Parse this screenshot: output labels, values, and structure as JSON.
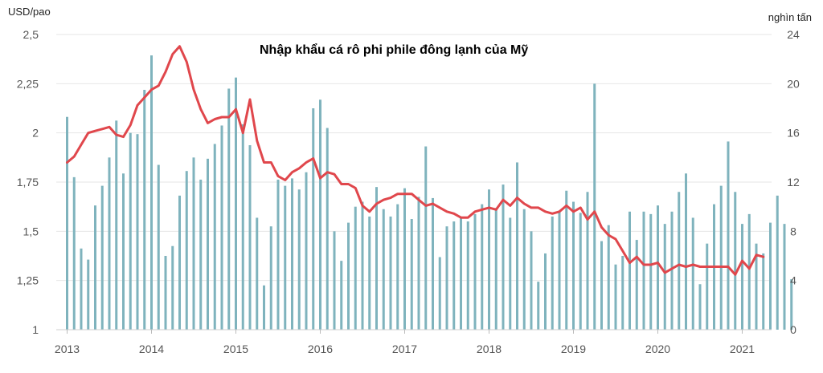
{
  "chart_data": {
    "type": "bar+line",
    "title": "Nhập khẩu cá rô phi phile đông lạnh của Mỹ",
    "y_left_label": "USD/pao",
    "y_right_label": "nghìn tấn",
    "y_left_ticks": [
      "1",
      "1,25",
      "1,5",
      "1,75",
      "2",
      "2,25",
      "2,5"
    ],
    "y_left_range": [
      1,
      2.5
    ],
    "y_right_ticks": [
      "0",
      "4",
      "8",
      "12",
      "16",
      "20",
      "24"
    ],
    "y_right_range": [
      0,
      24
    ],
    "x_tick_labels": [
      "2013",
      "2014",
      "2015",
      "2016",
      "2017",
      "2018",
      "2019",
      "2020",
      "2021"
    ],
    "x_start": "2013-01",
    "grid": true,
    "colors": {
      "bars": "#7fb3bd",
      "line": "#e0474c",
      "grid": "#e6e6e6"
    },
    "series": [
      {
        "type": "bar",
        "axis": "right",
        "values": [
          17.3,
          12.4,
          6.6,
          5.7,
          10.1,
          11.7,
          14.0,
          17.0,
          12.7,
          16.0,
          15.9,
          19.5,
          22.3,
          13.4,
          6.0,
          6.8,
          10.9,
          12.9,
          14.0,
          12.2,
          13.9,
          15.1,
          16.6,
          19.6,
          20.5,
          16.7,
          15.0,
          9.1,
          3.6,
          8.4,
          12.2,
          11.7,
          12.3,
          11.4,
          12.8,
          18.0,
          18.7,
          16.4,
          8.0,
          5.6,
          8.7,
          10.0,
          10.4,
          9.2,
          11.6,
          9.8,
          9.2,
          10.2,
          11.5,
          9.0,
          10.8,
          14.9,
          10.7,
          5.9,
          8.4,
          8.8,
          9.1,
          8.8,
          9.4,
          10.2,
          11.4,
          9.9,
          11.8,
          9.1,
          13.6,
          9.8,
          8.0,
          3.9,
          6.2,
          9.2,
          9.6,
          11.3,
          10.4,
          9.5,
          11.2,
          20.0,
          7.2,
          8.5,
          5.3,
          6.0,
          9.6,
          7.3,
          9.6,
          9.4,
          10.1,
          8.6,
          9.6,
          11.2,
          12.7,
          9.1,
          3.7,
          7.0,
          10.2,
          11.7,
          15.3,
          11.2,
          8.6,
          9.4,
          7.0,
          6.2,
          8.7,
          10.9,
          8.6,
          4.1
        ]
      },
      {
        "type": "line",
        "axis": "left",
        "values": [
          1.85,
          1.88,
          1.94,
          2.0,
          2.01,
          2.02,
          2.03,
          1.99,
          1.98,
          2.04,
          2.14,
          2.18,
          2.22,
          2.24,
          2.31,
          2.4,
          2.44,
          2.36,
          2.22,
          2.12,
          2.05,
          2.07,
          2.08,
          2.08,
          2.12,
          2.0,
          2.17,
          1.96,
          1.85,
          1.85,
          1.78,
          1.76,
          1.8,
          1.82,
          1.85,
          1.87,
          1.77,
          1.8,
          1.79,
          1.74,
          1.74,
          1.72,
          1.63,
          1.6,
          1.64,
          1.66,
          1.67,
          1.69,
          1.69,
          1.69,
          1.66,
          1.63,
          1.64,
          1.62,
          1.6,
          1.59,
          1.57,
          1.57,
          1.6,
          1.61,
          1.62,
          1.61,
          1.66,
          1.63,
          1.67,
          1.64,
          1.62,
          1.62,
          1.6,
          1.59,
          1.6,
          1.63,
          1.6,
          1.62,
          1.56,
          1.6,
          1.52,
          1.48,
          1.46,
          1.4,
          1.34,
          1.37,
          1.33,
          1.33,
          1.34,
          1.29,
          1.31,
          1.33,
          1.32,
          1.33,
          1.32,
          1.32,
          1.32,
          1.32,
          1.32,
          1.28,
          1.35,
          1.31,
          1.38,
          1.37
        ]
      }
    ]
  }
}
